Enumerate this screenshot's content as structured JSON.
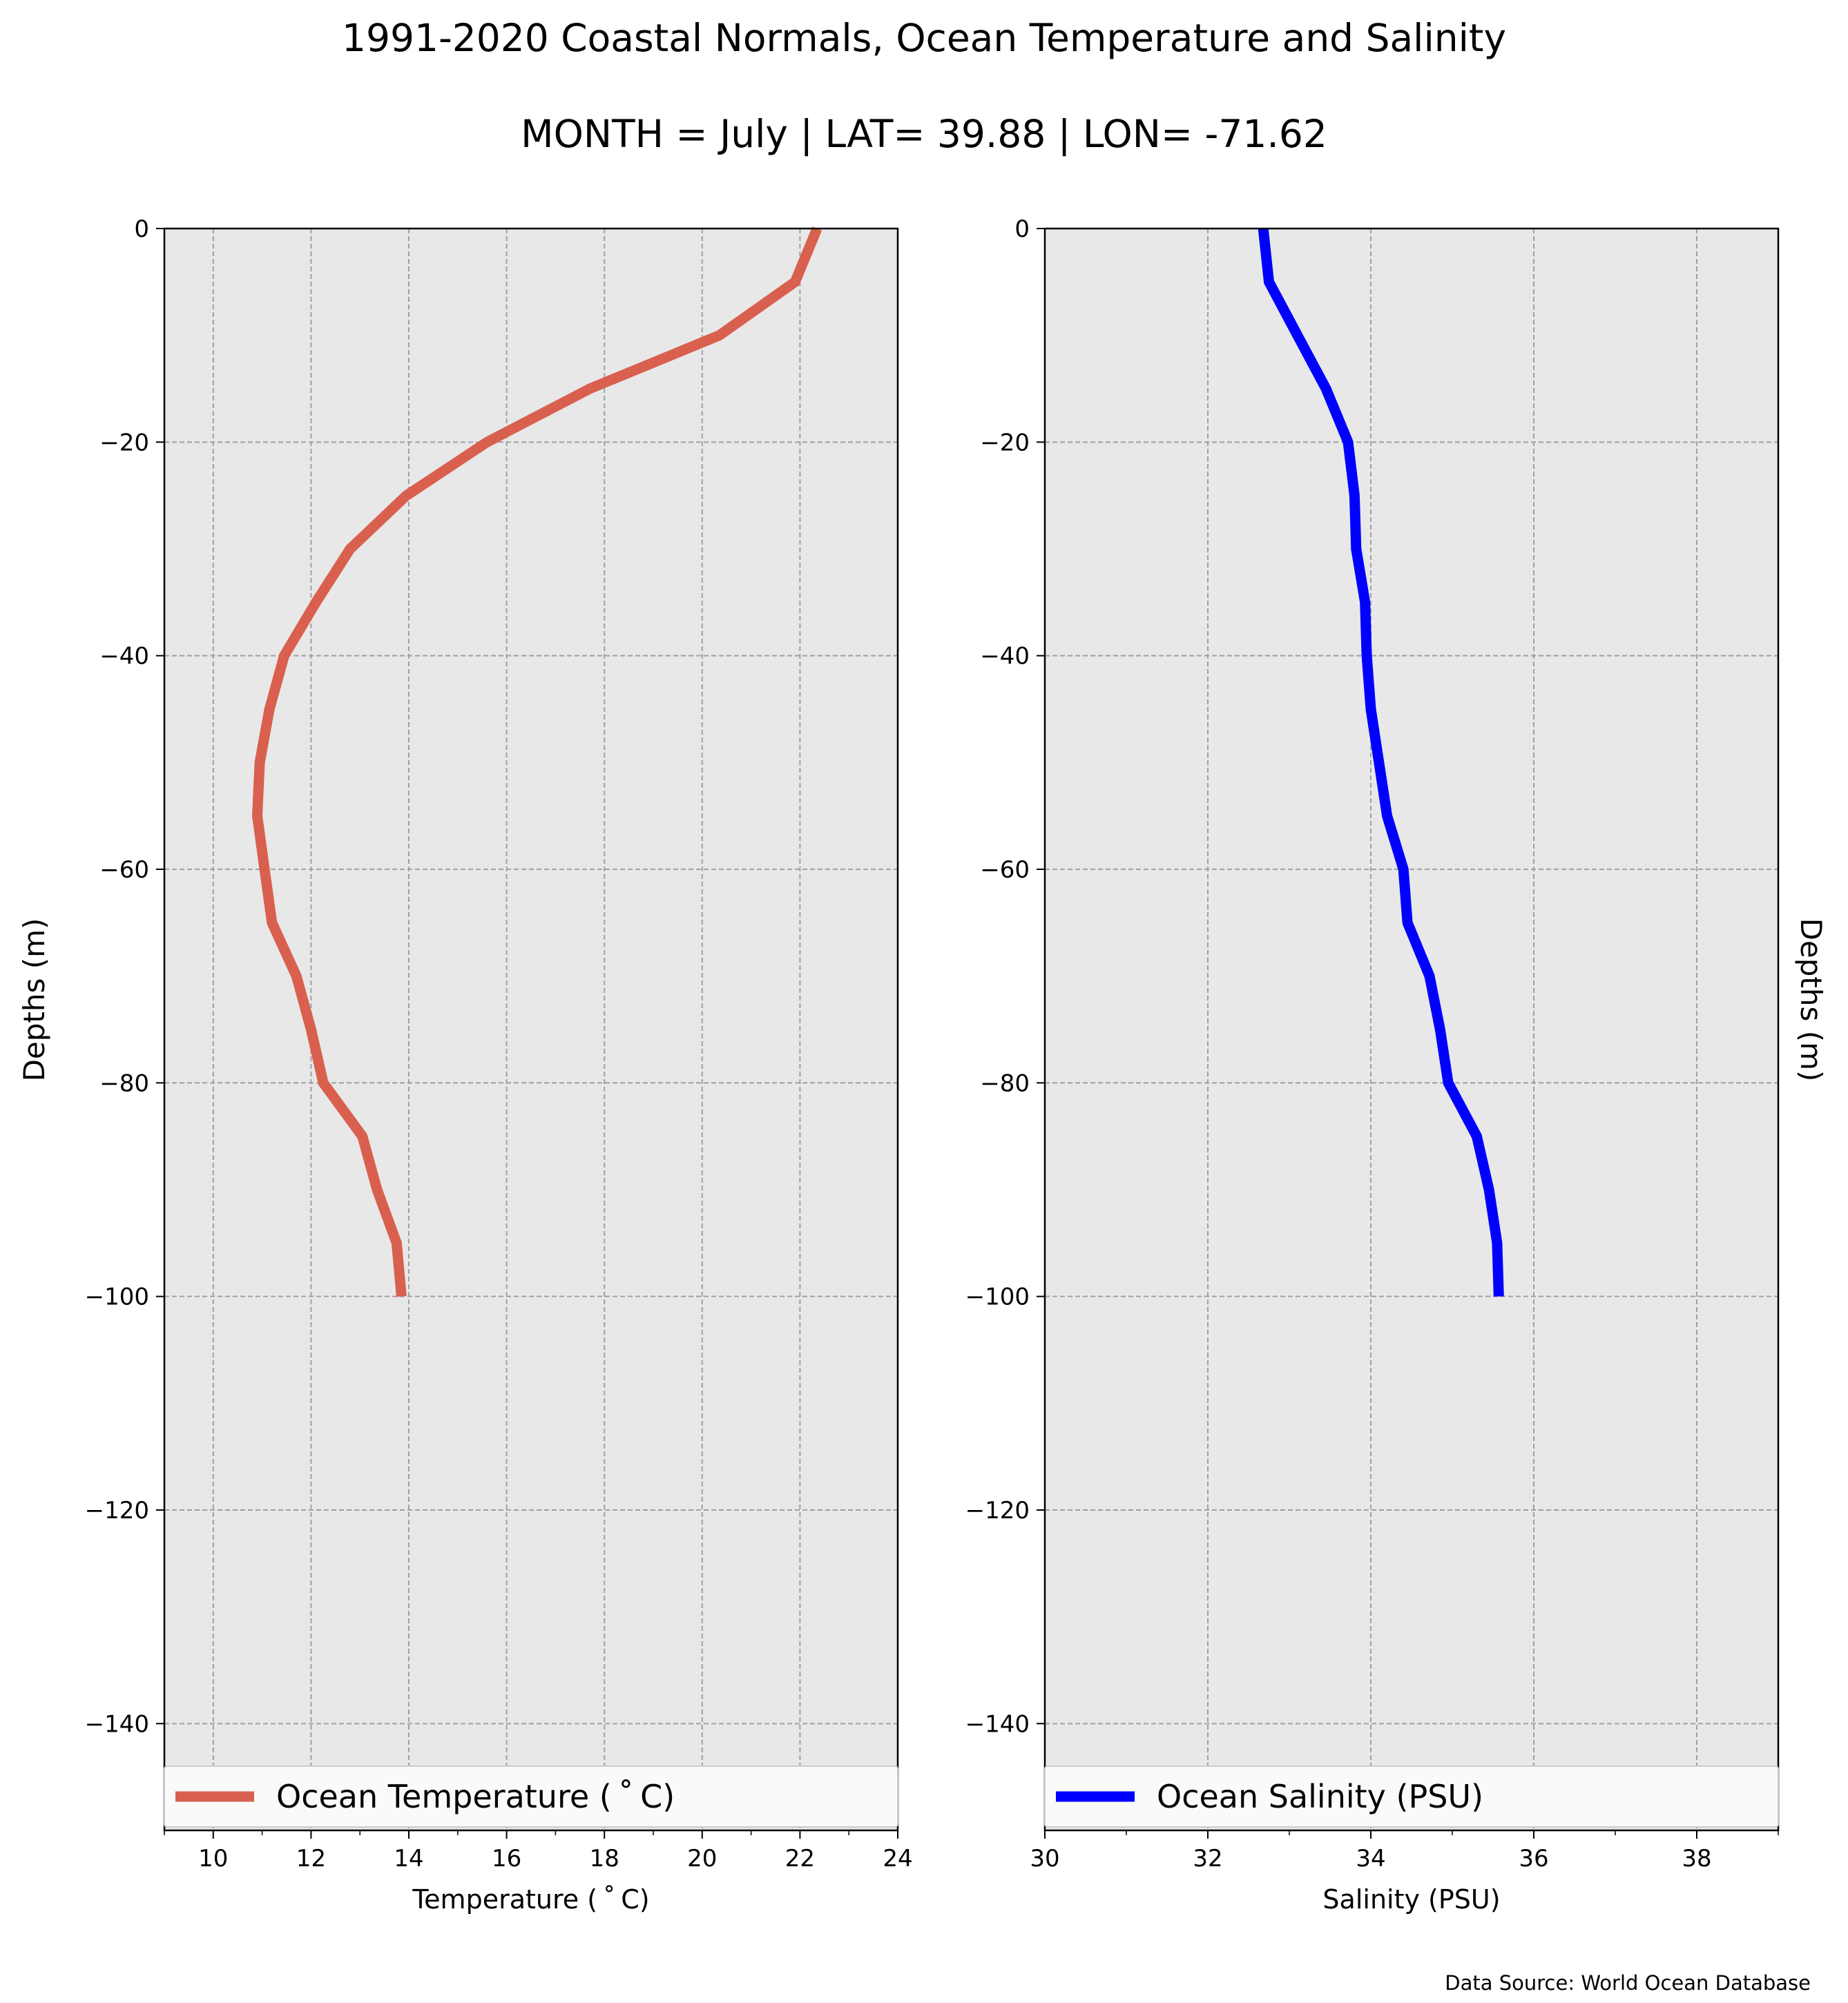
{
  "title": "1991-2020 Coastal Normals, Ocean Temperature and Salinity",
  "subtitle": "MONTH = July | LAT= 39.88 | LON= -71.62",
  "source": "Data Source: World Ocean Database",
  "chart_data": [
    {
      "type": "line",
      "xlabel": "Temperature ($^\\circ$C)",
      "xlabel_display": "Temperature ( ˚ C)",
      "ylabel": "Depths (m)",
      "xlim": [
        9,
        24
      ],
      "ylim": [
        -150,
        0
      ],
      "xticks": [
        10,
        12,
        14,
        16,
        18,
        20,
        22,
        24
      ],
      "yticks": [
        0,
        -20,
        -40,
        -60,
        -80,
        -100,
        -120,
        -140
      ],
      "grid": true,
      "legend_position": "bottom",
      "series": [
        {
          "name": "Ocean Temperature ( ˚ C)",
          "color": "#d9604e",
          "depth": [
            0,
            -5,
            -10,
            -15,
            -20,
            -25,
            -30,
            -35,
            -40,
            -45,
            -50,
            -55,
            -60,
            -65,
            -70,
            -75,
            -80,
            -85,
            -90,
            -95,
            -100
          ],
          "values": [
            22.35,
            21.9,
            20.35,
            17.7,
            15.6,
            13.95,
            12.8,
            12.1,
            11.45,
            11.15,
            10.95,
            10.9,
            11.05,
            11.2,
            11.7,
            12.0,
            12.25,
            13.05,
            13.35,
            13.75,
            13.85
          ]
        }
      ]
    },
    {
      "type": "line",
      "xlabel": "Salinity (PSU)",
      "ylabel": "Depths (m)",
      "xlim": [
        30,
        39
      ],
      "ylim": [
        -150,
        0
      ],
      "xticks": [
        30,
        32,
        34,
        36,
        38
      ],
      "yticks": [
        0,
        -20,
        -40,
        -60,
        -80,
        -100,
        -120,
        -140
      ],
      "grid": true,
      "legend_position": "bottom",
      "series": [
        {
          "name": "Ocean Salinity (PSU)",
          "color": "#0000ff",
          "depth": [
            0,
            -5,
            -10,
            -15,
            -20,
            -25,
            -30,
            -35,
            -40,
            -45,
            -50,
            -55,
            -60,
            -65,
            -70,
            -75,
            -80,
            -85,
            -90,
            -95,
            -100
          ],
          "values": [
            32.68,
            32.75,
            33.1,
            33.45,
            33.72,
            33.8,
            33.82,
            33.93,
            33.95,
            34.0,
            34.1,
            34.2,
            34.4,
            34.45,
            34.72,
            34.85,
            34.95,
            35.3,
            35.45,
            35.55,
            35.57
          ]
        }
      ]
    }
  ]
}
